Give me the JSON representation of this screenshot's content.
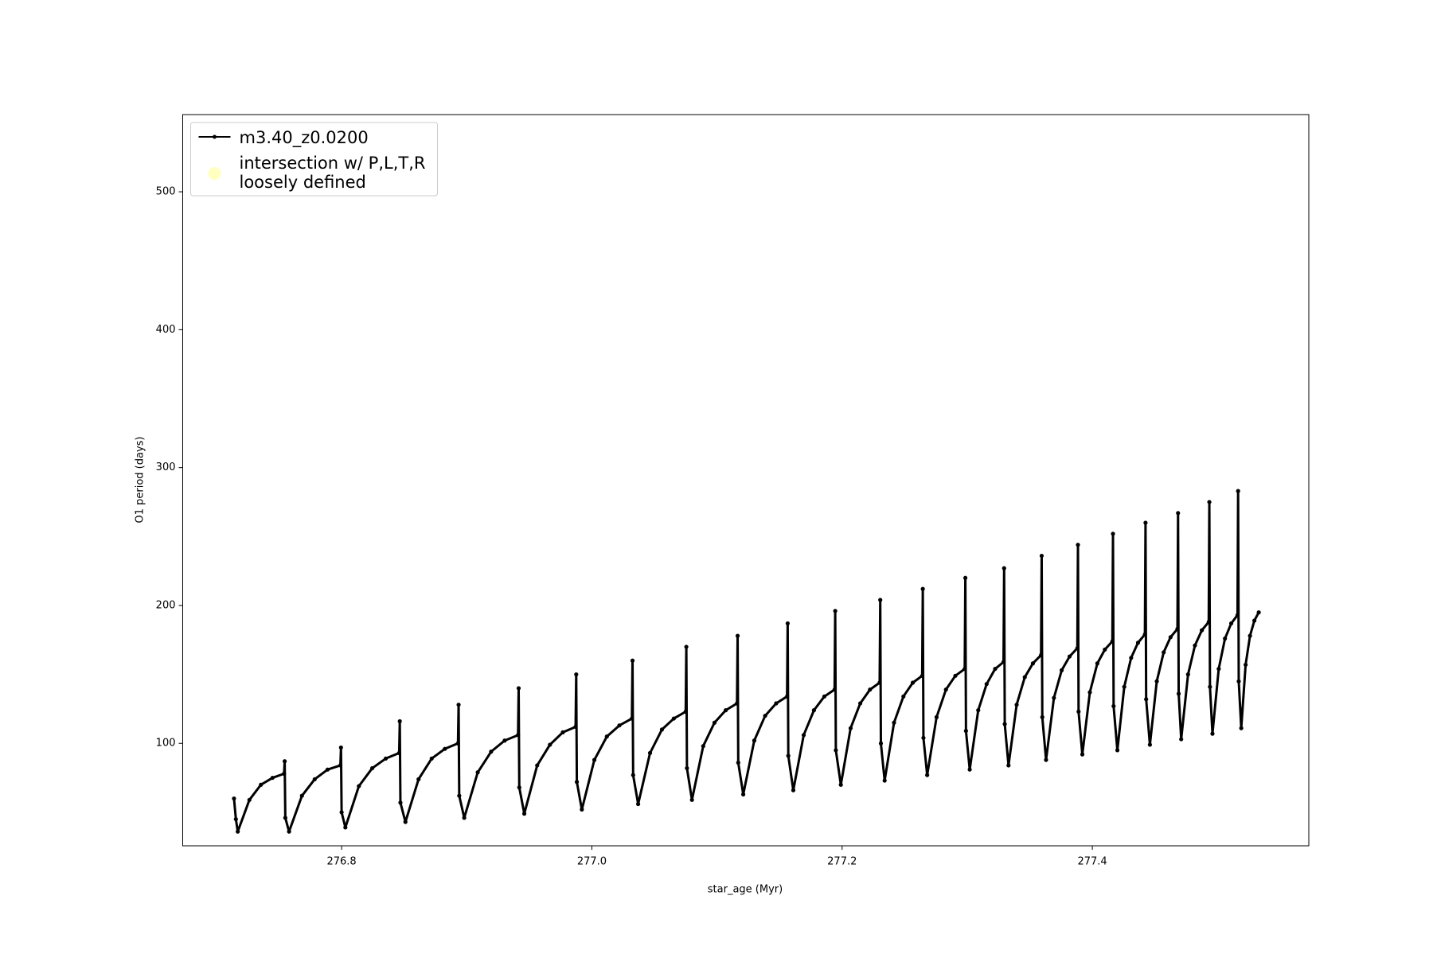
{
  "chart_data": {
    "type": "line",
    "xlabel": "star_age (Myr)",
    "ylabel": "O1 period (days)",
    "xlim": [
      276.673,
      277.573
    ],
    "ylim": [
      25.7,
      556
    ],
    "xticks": [
      276.8,
      {
        "value": 277,
        "label": "277.0"
      },
      277.2,
      277.4
    ],
    "yticks": [
      100,
      200,
      300,
      400,
      500
    ],
    "legend": "upper left",
    "legend_only": {
      "name": "intersection w/ P,L,T,R\nloosely defined",
      "color": "#ffffc0"
    },
    "x": [
      276.714,
      276.7155,
      276.717,
      276.7263,
      276.7355,
      276.7448,
      276.754,
      276.7545,
      276.755,
      276.758,
      276.7683,
      276.7785,
      276.7888,
      276.799,
      276.7995,
      276.8,
      276.803,
      276.8138,
      276.8245,
      276.8353,
      276.846,
      276.8465,
      276.847,
      276.851,
      276.8615,
      276.872,
      276.8825,
      276.893,
      276.8935,
      276.894,
      276.898,
      276.9088,
      276.9195,
      276.9303,
      276.941,
      276.9415,
      276.942,
      276.946,
      276.9563,
      276.9665,
      276.9768,
      276.987,
      276.9875,
      276.988,
      276.992,
      277.002,
      277.012,
      277.022,
      277.032,
      277.0325,
      277.033,
      277.037,
      277.0465,
      277.056,
      277.0655,
      277.075,
      277.0755,
      277.076,
      277.08,
      277.089,
      277.098,
      277.107,
      277.116,
      277.1165,
      277.117,
      277.121,
      277.1298,
      277.1385,
      277.1473,
      277.156,
      277.1565,
      277.157,
      277.161,
      277.1693,
      277.1775,
      277.1858,
      277.194,
      277.1945,
      277.195,
      277.199,
      277.2068,
      277.2145,
      277.2223,
      277.23,
      277.2305,
      277.231,
      277.234,
      277.2415,
      277.249,
      277.2565,
      277.264,
      277.2645,
      277.265,
      277.268,
      277.2755,
      277.283,
      277.2905,
      277.298,
      277.2985,
      277.299,
      277.302,
      277.3088,
      277.3155,
      277.3223,
      277.329,
      277.3295,
      277.33,
      277.333,
      277.3395,
      277.346,
      277.3525,
      277.359,
      277.3595,
      277.36,
      277.363,
      277.3693,
      277.3755,
      277.3818,
      277.388,
      277.3885,
      277.389,
      277.392,
      277.398,
      277.404,
      277.41,
      277.416,
      277.4165,
      277.417,
      277.42,
      277.4255,
      277.431,
      277.4365,
      277.442,
      277.4425,
      277.443,
      277.446,
      277.4515,
      277.457,
      277.4625,
      277.468,
      277.4685,
      277.469,
      277.471,
      277.4765,
      277.482,
      277.4875,
      277.493,
      277.4935,
      277.494,
      277.496,
      277.501,
      277.506,
      277.511,
      277.516,
      277.5165,
      277.517,
      277.519,
      277.5225,
      277.526,
      277.5295,
      277.533
    ],
    "series": [
      {
        "name": "m3.40_z0.0200",
        "color": "#000000",
        "values": [
          60,
          45,
          36,
          59,
          70,
          75,
          78,
          87,
          46,
          36,
          62,
          74,
          81,
          84,
          97,
          50,
          39,
          69,
          82,
          89,
          93,
          116,
          57,
          43,
          74,
          89,
          96,
          100,
          128,
          62,
          46,
          79,
          94,
          102,
          106,
          140,
          68,
          49,
          84,
          99,
          108,
          112,
          150,
          72,
          52,
          88,
          105,
          113,
          118,
          160,
          77,
          56,
          93,
          110,
          118,
          123,
          170,
          82,
          59,
          98,
          115,
          124,
          129,
          178,
          86,
          63,
          102,
          120,
          129,
          134,
          187,
          91,
          66,
          106,
          124,
          134,
          139,
          196,
          95,
          70,
          111,
          129,
          139,
          144,
          204,
          100,
          73,
          115,
          134,
          144,
          149,
          212,
          104,
          77,
          119,
          139,
          149,
          154,
          220,
          109,
          81,
          124,
          143,
          154,
          159,
          227,
          114,
          84,
          128,
          148,
          158,
          164,
          236,
          119,
          88,
          133,
          153,
          163,
          169,
          244,
          123,
          92,
          137,
          158,
          168,
          174,
          252,
          127,
          95,
          141,
          162,
          173,
          179,
          260,
          132,
          99,
          145,
          166,
          177,
          183,
          267,
          136,
          103,
          150,
          171,
          182,
          188,
          275,
          141,
          107,
          154,
          176,
          187,
          193,
          283,
          145,
          111,
          157,
          178,
          189,
          195
        ]
      }
    ]
  }
}
